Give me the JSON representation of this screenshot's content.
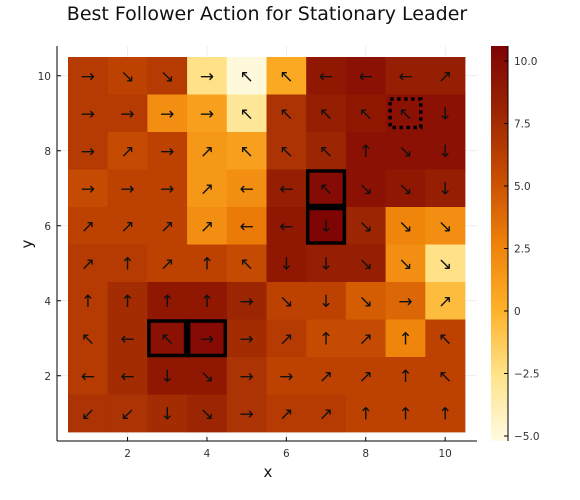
{
  "chart_data": {
    "type": "heatmap",
    "title": "Best Follower Action for Stationary Leader",
    "xlabel": "x",
    "ylabel": "y",
    "x": [
      1,
      2,
      3,
      4,
      5,
      6,
      7,
      8,
      9,
      10
    ],
    "y": [
      10,
      9,
      8,
      7,
      6,
      5,
      4,
      3,
      2,
      1
    ],
    "xlim": [
      0.5,
      10.5
    ],
    "ylim": [
      0.5,
      10.5
    ],
    "xticks": [
      2,
      4,
      6,
      8,
      10
    ],
    "yticks": [
      2,
      4,
      6,
      8,
      10
    ],
    "colorbar": {
      "limits": [
        -5.2,
        10.6
      ],
      "ticks": [
        -5.0,
        -2.5,
        0,
        2.5,
        5.0,
        7.5,
        10.0
      ],
      "tick_labels": [
        "−5.0",
        "−2.5",
        "0",
        "2.5",
        "5.0",
        "7.5",
        "10.0"
      ],
      "colormap": [
        "#fffbe3",
        "#ffe38a",
        "#fdb128",
        "#ee8109",
        "#c84c02",
        "#9c2503",
        "#7e0304"
      ]
    },
    "grid": true,
    "legend": "none",
    "values": [
      [
        6.5,
        6.0,
        6.5,
        -2.5,
        -5.0,
        0.5,
        9.0,
        9.5,
        8.5,
        8.5
      ],
      [
        6.5,
        6.5,
        2.0,
        1.0,
        -3.0,
        7.0,
        8.5,
        9.0,
        9.5,
        9.5
      ],
      [
        6.5,
        5.5,
        6.0,
        1.5,
        1.0,
        7.0,
        8.0,
        9.5,
        9.5,
        9.5
      ],
      [
        5.5,
        6.0,
        6.0,
        1.5,
        2.0,
        8.5,
        10.0,
        9.5,
        9.0,
        8.5
      ],
      [
        6.0,
        6.0,
        6.0,
        2.0,
        3.0,
        9.0,
        10.5,
        8.0,
        2.5,
        2.0
      ],
      [
        6.5,
        6.5,
        6.0,
        6.0,
        5.5,
        9.0,
        8.5,
        8.5,
        2.0,
        -2.5
      ],
      [
        6.5,
        7.5,
        9.0,
        9.0,
        8.0,
        6.0,
        6.0,
        4.5,
        4.0,
        -0.5
      ],
      [
        6.5,
        7.5,
        9.5,
        10.0,
        7.5,
        6.5,
        5.5,
        5.5,
        2.5,
        6.0
      ],
      [
        6.5,
        7.5,
        9.0,
        9.0,
        7.0,
        6.0,
        6.0,
        6.0,
        6.0,
        6.0
      ],
      [
        7.0,
        7.0,
        7.5,
        8.0,
        7.0,
        6.5,
        6.5,
        6.0,
        6.0,
        6.0
      ]
    ],
    "arrows": [
      [
        "→",
        "↘",
        "↘",
        "→",
        "↖",
        "↖",
        "←",
        "←",
        "←",
        "↗"
      ],
      [
        "→",
        "→",
        "→",
        "→",
        "↖",
        "↖",
        "↖",
        "↖",
        "↖",
        "↓"
      ],
      [
        "→",
        "↗",
        "→",
        "↗",
        "↖",
        "↖",
        "↖",
        "↑",
        "↘",
        "↓"
      ],
      [
        "→",
        "→",
        "→",
        "↗",
        "←",
        "←",
        "↖",
        "↘",
        "↘",
        "↓"
      ],
      [
        "↗",
        "↗",
        "↗",
        "↗",
        "←",
        "←",
        "↓",
        "↘",
        "↘",
        "↘"
      ],
      [
        "↗",
        "↑",
        "↗",
        "↑",
        "↖",
        "↓",
        "↓",
        "↘",
        "↘",
        "↘"
      ],
      [
        "↑",
        "↑",
        "↑",
        "↑",
        "→",
        "↘",
        "↓",
        "↘",
        "→",
        "↗"
      ],
      [
        "↖",
        "←",
        "↖",
        "→",
        "→",
        "↗",
        "↑",
        "↗",
        "↑",
        "↖"
      ],
      [
        "←",
        "←",
        "↓",
        "↘",
        "→",
        "→",
        "↗",
        "↗",
        "↑",
        "↖"
      ],
      [
        "↙",
        "↙",
        "↓",
        "↘",
        "→",
        "↗",
        "↗",
        "↑",
        "↑",
        "↑"
      ]
    ],
    "highlights": [
      {
        "x": 7,
        "y": 7,
        "style": "solid"
      },
      {
        "x": 7,
        "y": 6,
        "style": "solid"
      },
      {
        "x": 3,
        "y": 3,
        "style": "solid"
      },
      {
        "x": 4,
        "y": 3,
        "style": "solid"
      },
      {
        "x": 9,
        "y": 9,
        "style": "dotted"
      }
    ]
  }
}
